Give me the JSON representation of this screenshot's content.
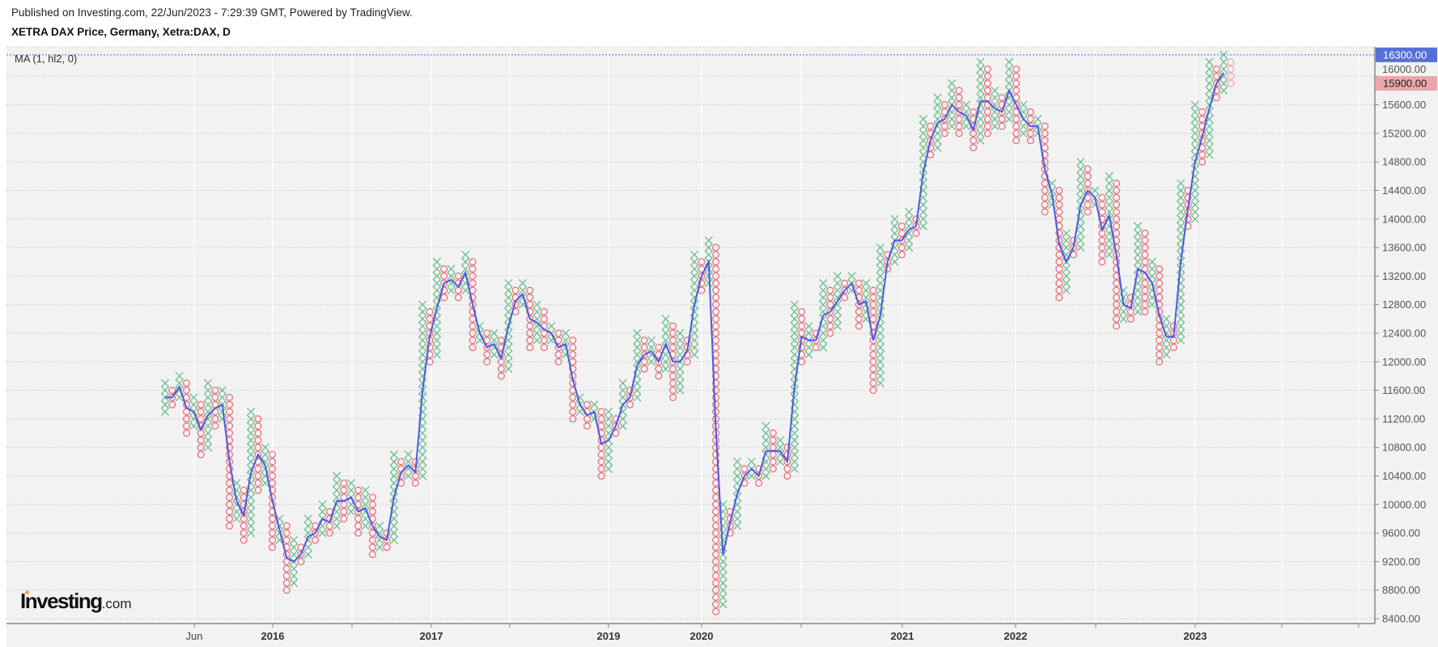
{
  "header": {
    "published": "Published on Investing.com, 22/Jun/2023 - 7:29:39 GMT, Powered by TradingView.",
    "title": "XETRA DAX Price, Germany, Xetra:DAX, D"
  },
  "indicator_label": "MA (1, hl2, 0)",
  "logo": {
    "main": "Investing",
    "suffix": ".com"
  },
  "colors": {
    "x_box": "#6dbd8e",
    "o_box": "#e8707c",
    "o_box_forming": "#f0a9b0",
    "ma_line": "#4c5be0",
    "last_price_bg": "#5670d8",
    "ma_value_bg": "#eba6ac",
    "background": "#f2f2f2"
  },
  "chart_data": {
    "type": "point-and-figure",
    "box_size": 100,
    "ylim": [
      8400,
      16300
    ],
    "y_ticks": [
      "8400.00",
      "8800.00",
      "9200.00",
      "9600.00",
      "10000.00",
      "10400.00",
      "10800.00",
      "11200.00",
      "11600.00",
      "12000.00",
      "12400.00",
      "12800.00",
      "13200.00",
      "13600.00",
      "14000.00",
      "14400.00",
      "14800.00",
      "15200.00",
      "15600.00",
      "16000.00"
    ],
    "x_ticks": [
      "Jun",
      "2016",
      "",
      "2017",
      "",
      "2019",
      "2020",
      "",
      "2021",
      "2022",
      "",
      "2023",
      "",
      ""
    ],
    "last_price_label": "16300.00",
    "ma_value_label": "15900.00",
    "grid": true,
    "columns": [
      [
        "X",
        11300,
        11700
      ],
      [
        "O",
        11400,
        11600
      ],
      [
        "X",
        11500,
        11800
      ],
      [
        "O",
        11000,
        11700
      ],
      [
        "X",
        11100,
        11500
      ],
      [
        "O",
        10700,
        11400
      ],
      [
        "X",
        10800,
        11700
      ],
      [
        "O",
        11100,
        11600
      ],
      [
        "X",
        11200,
        11600
      ],
      [
        "O",
        9700,
        11500
      ],
      [
        "X",
        9800,
        10300
      ],
      [
        "O",
        9500,
        10200
      ],
      [
        "X",
        9600,
        11300
      ],
      [
        "O",
        10200,
        11200
      ],
      [
        "X",
        10300,
        10800
      ],
      [
        "O",
        9400,
        10700
      ],
      [
        "X",
        9500,
        9800
      ],
      [
        "O",
        8800,
        9700
      ],
      [
        "X",
        8900,
        9500
      ],
      [
        "O",
        9200,
        9400
      ],
      [
        "X",
        9300,
        9800
      ],
      [
        "O",
        9500,
        9700
      ],
      [
        "X",
        9600,
        10000
      ],
      [
        "O",
        9600,
        9900
      ],
      [
        "X",
        9700,
        10400
      ],
      [
        "O",
        9800,
        10300
      ],
      [
        "X",
        9900,
        10300
      ],
      [
        "O",
        9600,
        10200
      ],
      [
        "X",
        9700,
        10200
      ],
      [
        "O",
        9300,
        10100
      ],
      [
        "X",
        9400,
        9700
      ],
      [
        "O",
        9400,
        9600
      ],
      [
        "X",
        9500,
        10700
      ],
      [
        "O",
        10300,
        10600
      ],
      [
        "X",
        10400,
        10700
      ],
      [
        "O",
        10300,
        10600
      ],
      [
        "X",
        10400,
        12800
      ],
      [
        "O",
        12000,
        12700
      ],
      [
        "X",
        12100,
        13400
      ],
      [
        "O",
        12900,
        13300
      ],
      [
        "X",
        13000,
        13300
      ],
      [
        "O",
        12900,
        13200
      ],
      [
        "X",
        13000,
        13500
      ],
      [
        "O",
        12200,
        13400
      ],
      [
        "X",
        12300,
        12500
      ],
      [
        "O",
        12000,
        12400
      ],
      [
        "X",
        12100,
        12400
      ],
      [
        "O",
        11800,
        12300
      ],
      [
        "X",
        11900,
        13100
      ],
      [
        "O",
        12700,
        13000
      ],
      [
        "X",
        12800,
        13100
      ],
      [
        "O",
        12200,
        13000
      ],
      [
        "X",
        12300,
        12800
      ],
      [
        "O",
        12200,
        12700
      ],
      [
        "X",
        12300,
        12500
      ],
      [
        "O",
        12000,
        12400
      ],
      [
        "X",
        12100,
        12400
      ],
      [
        "O",
        11200,
        12300
      ],
      [
        "X",
        11300,
        11500
      ],
      [
        "O",
        11100,
        11400
      ],
      [
        "X",
        11200,
        11400
      ],
      [
        "O",
        10400,
        11300
      ],
      [
        "X",
        10500,
        11300
      ],
      [
        "O",
        11000,
        11200
      ],
      [
        "X",
        11100,
        11700
      ],
      [
        "O",
        11400,
        11600
      ],
      [
        "X",
        11500,
        12400
      ],
      [
        "O",
        11900,
        12300
      ],
      [
        "X",
        12000,
        12300
      ],
      [
        "O",
        11800,
        12200
      ],
      [
        "X",
        11900,
        12600
      ],
      [
        "O",
        11500,
        12500
      ],
      [
        "X",
        11600,
        12400
      ],
      [
        "O",
        12000,
        12300
      ],
      [
        "X",
        12100,
        13500
      ],
      [
        "O",
        13000,
        13400
      ],
      [
        "X",
        13100,
        13700
      ],
      [
        "O",
        8500,
        13600
      ],
      [
        "X",
        8600,
        10000
      ],
      [
        "O",
        9600,
        9900
      ],
      [
        "X",
        9700,
        10600
      ],
      [
        "O",
        10300,
        10500
      ],
      [
        "X",
        10400,
        10600
      ],
      [
        "O",
        10300,
        10500
      ],
      [
        "X",
        10400,
        11100
      ],
      [
        "O",
        10500,
        11000
      ],
      [
        "X",
        10600,
        10900
      ],
      [
        "O",
        10400,
        10800
      ],
      [
        "X",
        10500,
        12800
      ],
      [
        "O",
        12000,
        12700
      ],
      [
        "X",
        12100,
        12500
      ],
      [
        "O",
        12200,
        12400
      ],
      [
        "X",
        12200,
        13100
      ],
      [
        "O",
        12400,
        13000
      ],
      [
        "X",
        12500,
        13200
      ],
      [
        "O",
        12900,
        13100
      ],
      [
        "X",
        13000,
        13200
      ],
      [
        "O",
        12500,
        13100
      ],
      [
        "X",
        12600,
        13100
      ],
      [
        "O",
        11600,
        13000
      ],
      [
        "X",
        11700,
        13600
      ],
      [
        "O",
        13300,
        13500
      ],
      [
        "X",
        13400,
        14000
      ],
      [
        "O",
        13500,
        13900
      ],
      [
        "X",
        13600,
        14100
      ],
      [
        "O",
        13800,
        14000
      ],
      [
        "X",
        13900,
        15400
      ],
      [
        "O",
        14900,
        15300
      ],
      [
        "X",
        15000,
        15700
      ],
      [
        "O",
        15200,
        15600
      ],
      [
        "X",
        15300,
        15900
      ],
      [
        "O",
        15200,
        15800
      ],
      [
        "X",
        15300,
        15600
      ],
      [
        "O",
        15000,
        15500
      ],
      [
        "X",
        15100,
        16200
      ],
      [
        "O",
        15200,
        16100
      ],
      [
        "X",
        15300,
        15800
      ],
      [
        "O",
        15300,
        15700
      ],
      [
        "X",
        15400,
        16200
      ],
      [
        "O",
        15100,
        16100
      ],
      [
        "X",
        15200,
        15600
      ],
      [
        "O",
        15100,
        15500
      ],
      [
        "X",
        15200,
        15400
      ],
      [
        "O",
        14100,
        15300
      ],
      [
        "X",
        14200,
        14500
      ],
      [
        "O",
        12900,
        14400
      ],
      [
        "X",
        13000,
        13800
      ],
      [
        "O",
        13500,
        13700
      ],
      [
        "X",
        13600,
        14800
      ],
      [
        "O",
        14100,
        14700
      ],
      [
        "X",
        14200,
        14400
      ],
      [
        "O",
        13400,
        14300
      ],
      [
        "X",
        13500,
        14600
      ],
      [
        "O",
        12500,
        14500
      ],
      [
        "X",
        12600,
        13000
      ],
      [
        "O",
        12600,
        12900
      ],
      [
        "X",
        12700,
        13900
      ],
      [
        "O",
        12700,
        13800
      ],
      [
        "X",
        12800,
        13400
      ],
      [
        "O",
        12000,
        13300
      ],
      [
        "X",
        12100,
        12600
      ],
      [
        "O",
        12200,
        12500
      ],
      [
        "X",
        12300,
        14500
      ],
      [
        "O",
        13900,
        14400
      ],
      [
        "X",
        14000,
        15600
      ],
      [
        "O",
        14800,
        15500
      ],
      [
        "X",
        14900,
        16200
      ],
      [
        "O",
        15700,
        16100
      ],
      [
        "X",
        15800,
        16300
      ],
      [
        "O",
        15900,
        16200
      ]
    ],
    "forming_last_column": true
  }
}
